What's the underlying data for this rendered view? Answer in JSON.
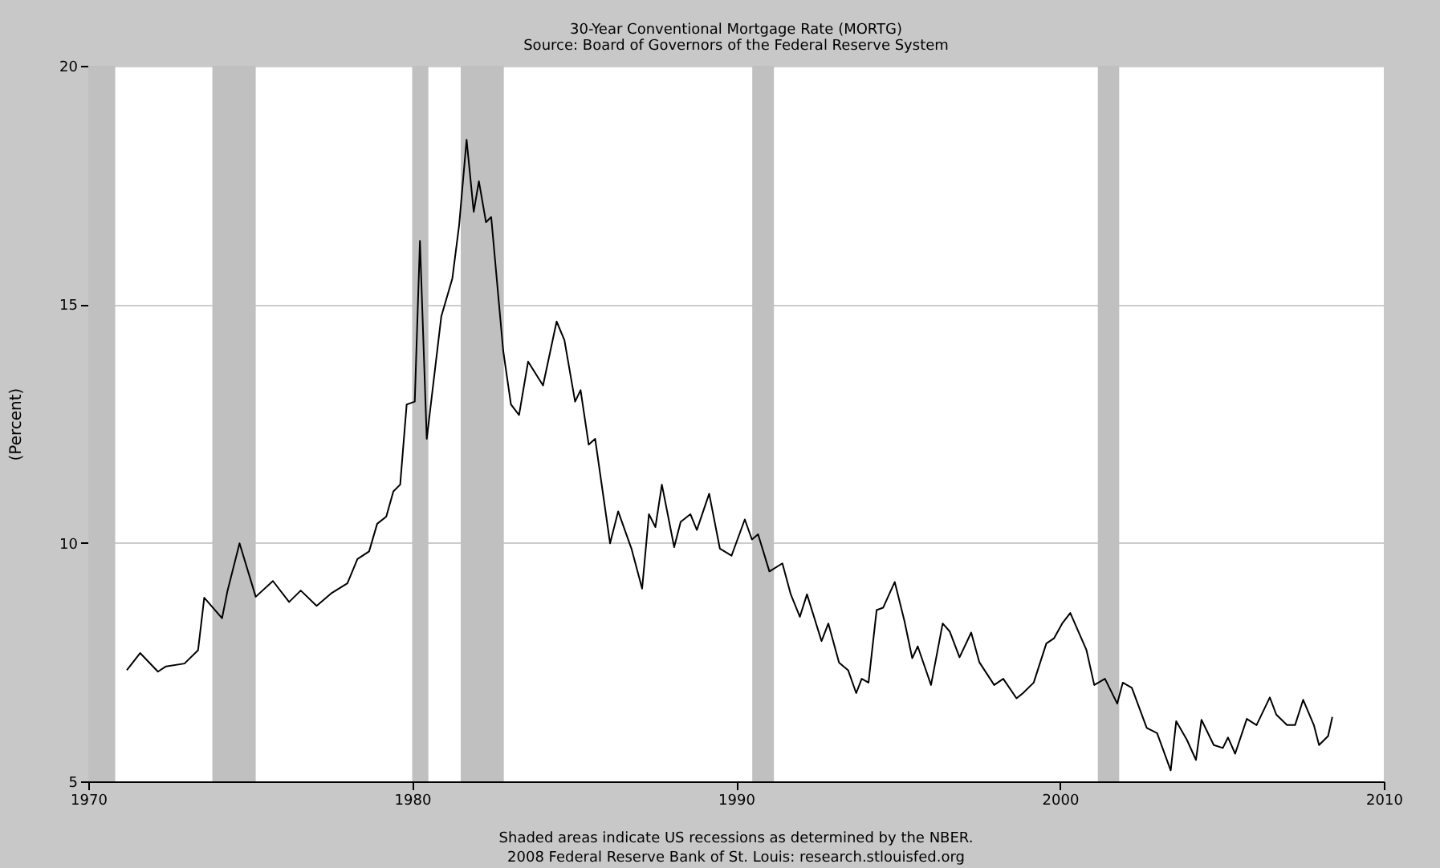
{
  "chart_data": {
    "type": "line",
    "title": "30-Year Conventional Mortgage Rate (MORTG)",
    "subtitle": "Source: Board of Governors of the Federal Reserve System",
    "ylabel": "(Percent)",
    "annotations": [
      "Shaded areas indicate US recessions as determined by the NBER.",
      "2008 Federal Reserve Bank of St. Louis: research.stlouisfed.org"
    ],
    "x": [
      1971.19,
      1971.6,
      1972.15,
      1972.4,
      1972.97,
      1973.39,
      1973.58,
      1974.13,
      1974.3,
      1974.67,
      1975.17,
      1975.7,
      1976.2,
      1976.56,
      1977.05,
      1977.52,
      1978.0,
      1978.31,
      1978.67,
      1978.92,
      1979.2,
      1979.42,
      1979.63,
      1979.83,
      1980.08,
      1980.24,
      1980.45,
      1980.9,
      1981.24,
      1981.45,
      1981.68,
      1981.9,
      1982.06,
      1982.28,
      1982.44,
      1982.81,
      1983.05,
      1983.3,
      1983.58,
      1984.04,
      1984.46,
      1984.7,
      1985.03,
      1985.2,
      1985.45,
      1985.65,
      1986.11,
      1986.36,
      1986.77,
      1987.1,
      1987.31,
      1987.51,
      1987.71,
      1988.09,
      1988.29,
      1988.59,
      1988.79,
      1989.17,
      1989.5,
      1989.86,
      1990.27,
      1990.49,
      1990.68,
      1991.03,
      1991.43,
      1991.69,
      1991.97,
      1992.19,
      1992.64,
      1992.85,
      1993.18,
      1993.46,
      1993.71,
      1993.88,
      1994.09,
      1994.34,
      1994.54,
      1994.9,
      1995.2,
      1995.44,
      1995.61,
      1996.02,
      1996.38,
      1996.6,
      1996.9,
      1997.26,
      1997.51,
      1997.97,
      1998.25,
      1998.66,
      1998.86,
      1999.19,
      1999.58,
      1999.82,
      2000.07,
      2000.32,
      2000.82,
      2001.06,
      2001.39,
      2001.77,
      2001.94,
      2002.22,
      2002.68,
      2003.0,
      2003.42,
      2003.59,
      2003.92,
      2004.2,
      2004.37,
      2004.75,
      2005.03,
      2005.19,
      2005.41,
      2005.77,
      2006.07,
      2006.48,
      2006.68,
      2007.01,
      2007.26,
      2007.51,
      2007.84,
      2008.0,
      2008.28,
      2008.41
    ],
    "series": [
      {
        "color": "#000000",
        "values": [
          7.33,
          7.69,
          7.3,
          7.41,
          7.47,
          7.75,
          8.85,
          8.42,
          9.0,
          9.99,
          8.87,
          9.2,
          8.76,
          9.0,
          8.68,
          8.95,
          9.15,
          9.66,
          9.82,
          10.4,
          10.55,
          11.08,
          11.22,
          12.9,
          12.96,
          16.33,
          12.18,
          14.75,
          15.54,
          16.66,
          18.45,
          16.94,
          17.58,
          16.72,
          16.83,
          14.03,
          12.9,
          12.68,
          13.8,
          13.3,
          14.64,
          14.25,
          12.96,
          13.2,
          12.06,
          12.18,
          9.99,
          10.66,
          9.88,
          9.04,
          10.6,
          10.33,
          11.22,
          9.91,
          10.44,
          10.6,
          10.27,
          11.03,
          9.88,
          9.73,
          10.49,
          10.07,
          10.18,
          9.4,
          9.57,
          8.92,
          8.45,
          8.92,
          7.94,
          8.31,
          7.49,
          7.33,
          6.85,
          7.15,
          7.07,
          8.59,
          8.64,
          9.18,
          8.36,
          7.58,
          7.83,
          7.02,
          8.31,
          8.14,
          7.6,
          8.12,
          7.5,
          7.02,
          7.15,
          6.74,
          6.85,
          7.07,
          7.89,
          8.0,
          8.31,
          8.53,
          7.75,
          7.02,
          7.15,
          6.63,
          7.07,
          6.96,
          6.12,
          6.01,
          5.23,
          6.26,
          5.87,
          5.45,
          6.29,
          5.76,
          5.7,
          5.92,
          5.58,
          6.31,
          6.18,
          6.76,
          6.4,
          6.18,
          6.18,
          6.71,
          6.18,
          5.76,
          5.95,
          6.35
        ]
      }
    ],
    "bands": [
      {
        "axis": "x",
        "from": 1970,
        "to": 1970.83,
        "color": "#c0c0c0"
      },
      {
        "axis": "x",
        "from": 1973.83,
        "to": 1975.17,
        "color": "#c0c0c0"
      },
      {
        "axis": "x",
        "from": 1980.0,
        "to": 1980.5,
        "color": "#c0c0c0"
      },
      {
        "axis": "x",
        "from": 1981.5,
        "to": 1982.83,
        "color": "#c0c0c0"
      },
      {
        "axis": "x",
        "from": 1990.5,
        "to": 1991.17,
        "color": "#c0c0c0"
      },
      {
        "axis": "x",
        "from": 2001.17,
        "to": 2001.83,
        "color": "#c0c0c0"
      }
    ],
    "xlim": [
      1970,
      2010
    ],
    "xticks": [
      1970,
      1980,
      1990,
      2000,
      2010
    ],
    "ylim": [
      5,
      20
    ],
    "yticks": [
      5,
      10,
      15,
      20
    ],
    "grid": "y",
    "line_style": "solid",
    "marker": "none"
  }
}
